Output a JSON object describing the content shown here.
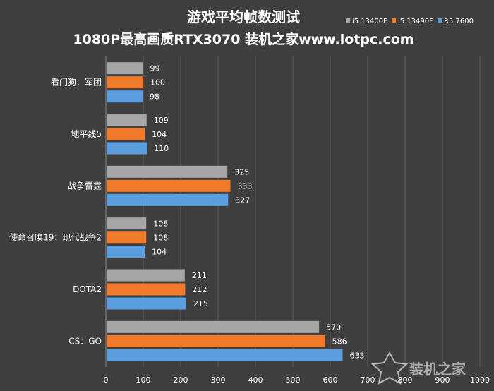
{
  "chart_data": {
    "type": "bar",
    "orientation": "horizontal",
    "title": "游戏平均帧数测试",
    "subtitle": "1080P最高画质RTX3070  装机之家www.lotpc.com",
    "categories": [
      "看门狗：军团",
      "地平线5",
      "战争雷霆",
      "使命召唤19：现代战争2",
      "DOTA2",
      "CS：GO"
    ],
    "series": [
      {
        "name": "i5 13400F",
        "color": "#a6a6a6",
        "values": [
          99,
          109,
          325,
          108,
          211,
          570
        ]
      },
      {
        "name": "i5 13490F",
        "color": "#f07a2a",
        "values": [
          100,
          104,
          333,
          108,
          212,
          586
        ]
      },
      {
        "name": "R5 7600",
        "color": "#5a9ee0",
        "values": [
          98,
          110,
          327,
          104,
          215,
          633
        ]
      }
    ],
    "xlim": [
      0,
      1000
    ],
    "xticks": [
      0,
      100,
      200,
      300,
      400,
      500,
      600,
      700,
      800,
      900,
      1000
    ],
    "grid": true,
    "legend_position": "top-right",
    "watermark": "装机之家"
  }
}
